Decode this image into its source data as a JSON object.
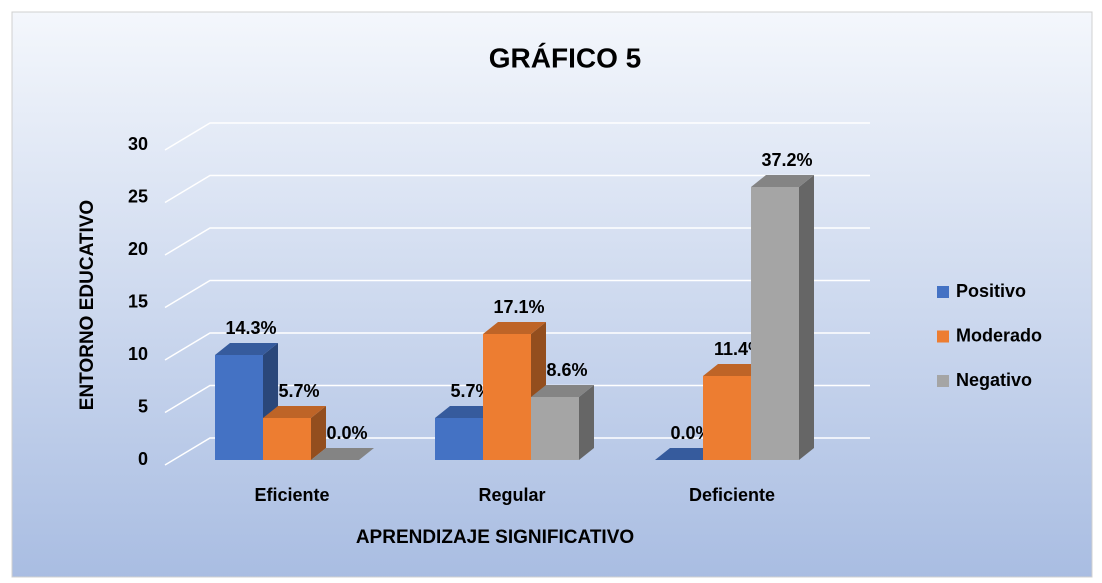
{
  "chart_data": {
    "type": "bar3d",
    "title": "GRÁFICO 5",
    "x_label": "APRENDIZAJE SIGNIFICATIVO",
    "y_label": "ENTORNO EDUCATIVO",
    "categories": [
      "Eficiente",
      "Regular",
      "Deficiente"
    ],
    "series": [
      {
        "name": "Positivo",
        "color": "#4472c4",
        "values": [
          10,
          4,
          0
        ],
        "value_labels": [
          "14.3%",
          "5.7%",
          "0.0%"
        ]
      },
      {
        "name": "Moderado",
        "color": "#ed7d31",
        "values": [
          4,
          12,
          8
        ],
        "value_labels": [
          "5.7%",
          "17.1%",
          "11.4%"
        ]
      },
      {
        "name": "Negativo",
        "color": "#a5a5a5",
        "values": [
          0,
          6,
          26
        ],
        "value_labels": [
          "0.0%",
          "8.6%",
          "37.2%"
        ]
      }
    ],
    "ylim": [
      0,
      30
    ],
    "yticks": [
      0,
      5,
      10,
      15,
      20,
      25,
      30
    ],
    "grid": true,
    "legend": "right"
  }
}
